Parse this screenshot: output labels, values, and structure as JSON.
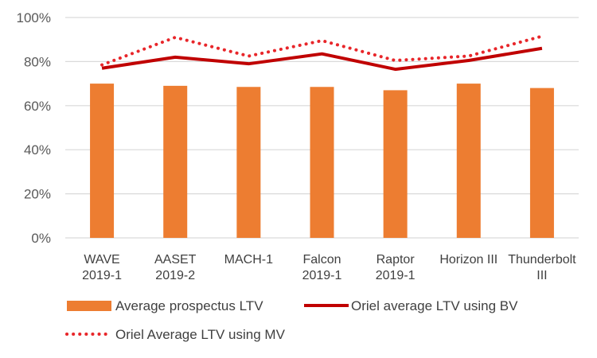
{
  "chart_data": {
    "type": "bar",
    "title": "",
    "xlabel": "",
    "ylabel": "",
    "ylim": [
      0,
      100
    ],
    "yticks": [
      "0%",
      "20%",
      "40%",
      "60%",
      "80%",
      "100%"
    ],
    "grid": true,
    "categories": [
      [
        "WAVE",
        "2019-1"
      ],
      [
        "AASET",
        "2019-2"
      ],
      [
        "MACH-1"
      ],
      [
        "Falcon",
        "2019-1"
      ],
      [
        "Raptor",
        "2019-1"
      ],
      [
        "Horizon III"
      ],
      [
        "Thunderbolt",
        "III"
      ]
    ],
    "series": [
      {
        "name": "Average prospectus LTV",
        "kind": "bar",
        "color": "#ED7D31",
        "values": [
          70,
          69,
          68.5,
          68.5,
          67,
          70,
          68
        ]
      },
      {
        "name": "Oriel average LTV using BV",
        "kind": "line",
        "color": "#C00000",
        "values": [
          77,
          82,
          79,
          83.5,
          76.5,
          80.5,
          86
        ]
      },
      {
        "name": "Oriel Average LTV using MV",
        "kind": "dotted-line",
        "color": "#E8262A",
        "values": [
          78.5,
          91,
          82.5,
          89.5,
          80.5,
          82.5,
          91.5
        ]
      }
    ],
    "legend": "bottom"
  }
}
